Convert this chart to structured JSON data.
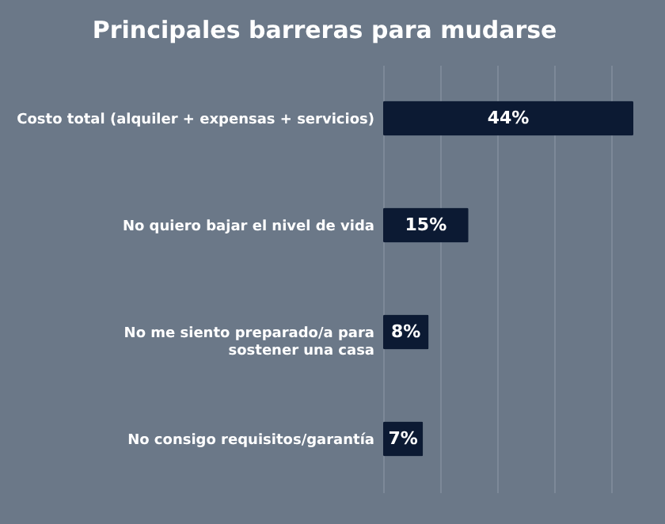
{
  "chart_data": {
    "type": "bar",
    "orientation": "horizontal",
    "title": "Principales barreras para mudarse",
    "categories": [
      "Costo total (alquiler + expensas + servicios)",
      "No quiero bajar el nivel de vida",
      "No me siento preparado/a para\nsostener una casa",
      "No consigo requisitos/garantía"
    ],
    "values": [
      44,
      15,
      8,
      7
    ],
    "color": "#0c1a33",
    "value_labels": [
      "44%",
      "15%",
      "8%",
      "7%"
    ],
    "xlim": [
      0,
      44
    ],
    "grid": "x",
    "tick_labels": "y"
  }
}
